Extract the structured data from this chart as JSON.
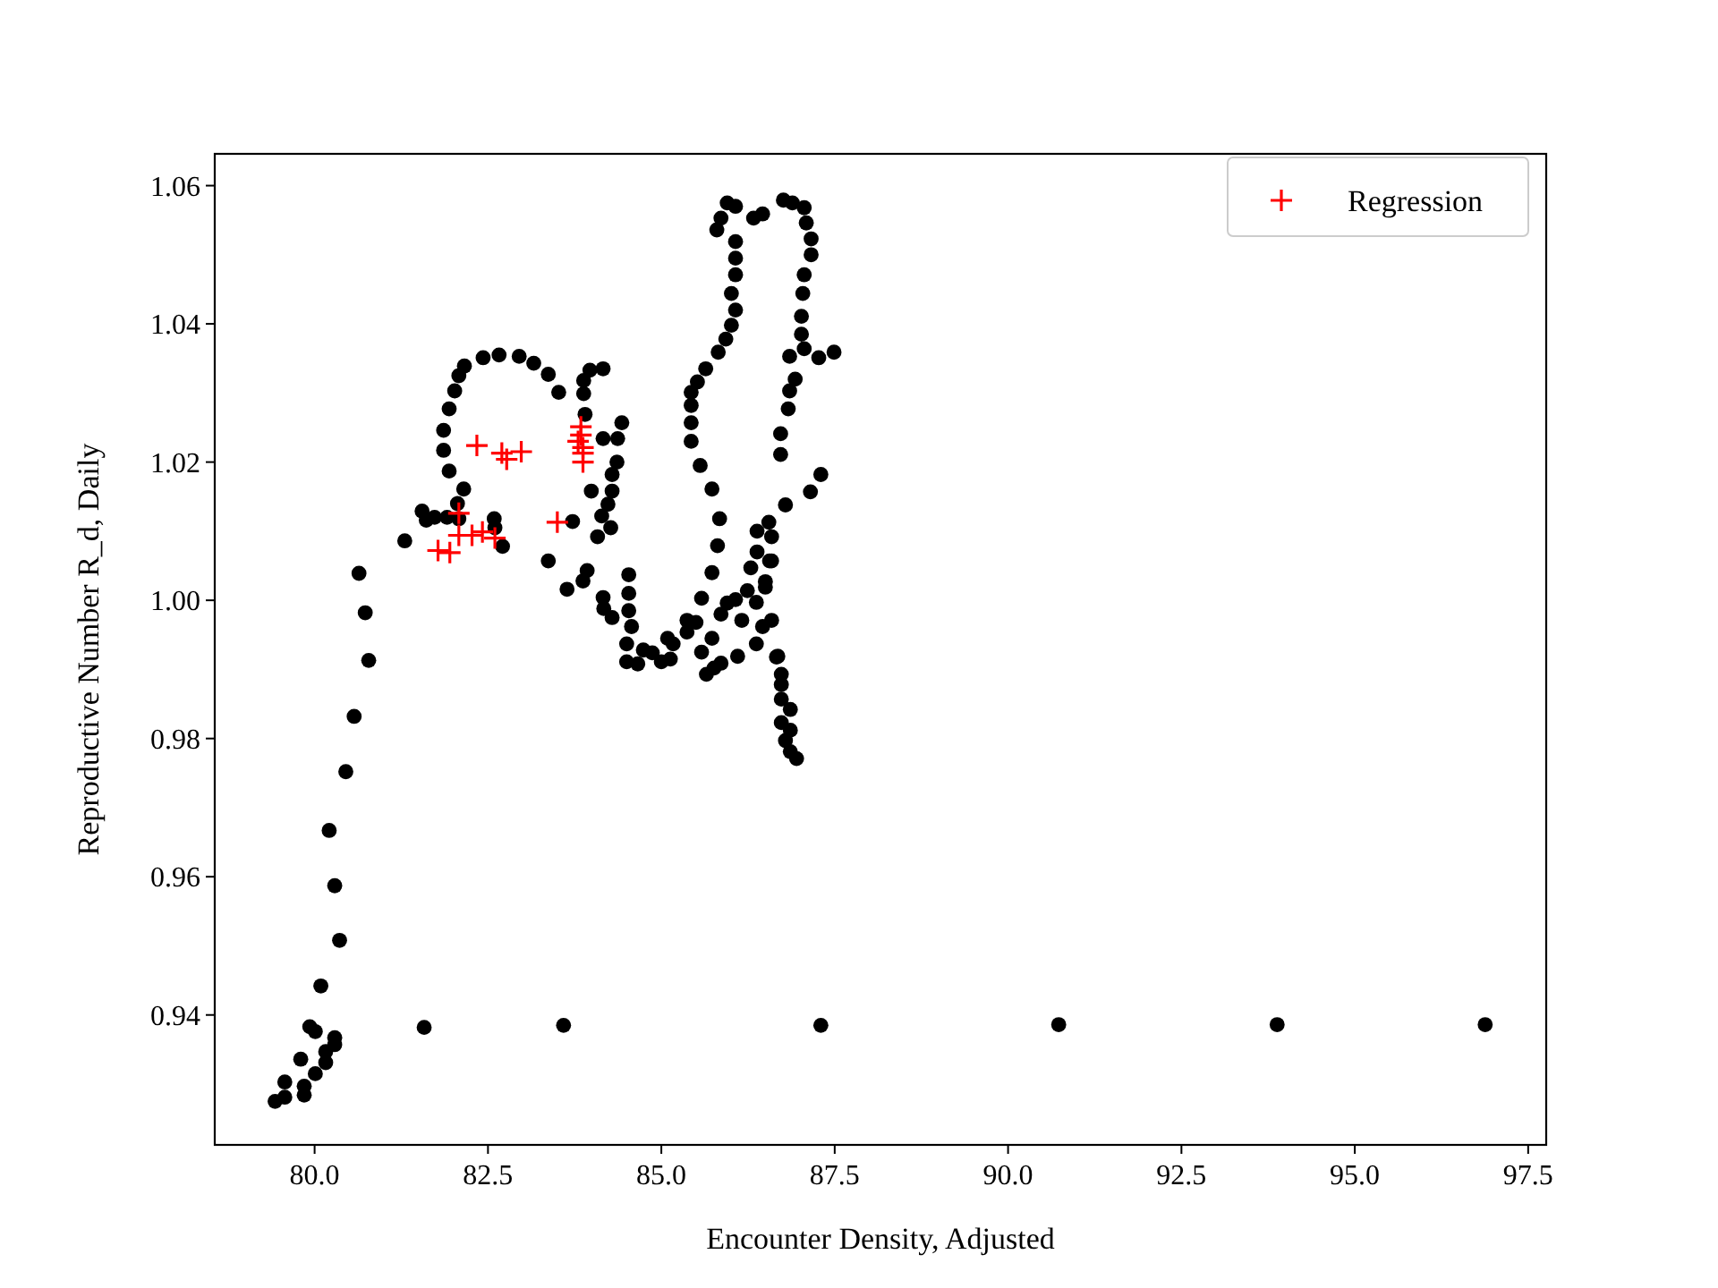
{
  "chart_data": {
    "type": "scatter",
    "xlabel": "Encounter Density, Adjusted",
    "ylabel": "Reproductive Number R_d, Daily",
    "xlim": [
      78.56,
      97.76
    ],
    "ylim": [
      0.9212,
      1.0646
    ],
    "xticks": [
      {
        "value": 80,
        "label": "80.0"
      },
      {
        "value": 82.5,
        "label": "82.5"
      },
      {
        "value": 85,
        "label": "85.0"
      },
      {
        "value": 87.5,
        "label": "87.5"
      },
      {
        "value": 90,
        "label": "90.0"
      },
      {
        "value": 92.5,
        "label": "92.5"
      },
      {
        "value": 95,
        "label": "95.0"
      },
      {
        "value": 97.5,
        "label": "97.5"
      }
    ],
    "yticks": [
      {
        "value": 0.94,
        "label": "0.94"
      },
      {
        "value": 0.96,
        "label": "0.96"
      },
      {
        "value": 0.98,
        "label": "0.98"
      },
      {
        "value": 1.0,
        "label": "1.00"
      },
      {
        "value": 1.02,
        "label": "1.02"
      },
      {
        "value": 1.04,
        "label": "1.04"
      },
      {
        "value": 1.06,
        "label": "1.06"
      }
    ],
    "grid": false,
    "legend": "top right",
    "series": [
      {
        "color": "#000000",
        "marker": "circle",
        "x": [
          79.43,
          79.57,
          79.57,
          79.85,
          79.85,
          80.01,
          79.8,
          80.16,
          80.16,
          80.29,
          80.29,
          79.93,
          80.01,
          80.09,
          80.36,
          80.29,
          80.21,
          80.45,
          80.57,
          80.78,
          80.73,
          80.64,
          81.58,
          83.59,
          87.3,
          90.73,
          93.88,
          96.88,
          81.3,
          81.55,
          81.61,
          81.73,
          81.91,
          82.08,
          82.06,
          82.15,
          81.94,
          81.86,
          81.86,
          81.94,
          82.02,
          82.08,
          82.16,
          82.43,
          82.66,
          82.95,
          83.16,
          83.37,
          83.52,
          82.59,
          82.6,
          82.71,
          83.37,
          83.72,
          84.08,
          84.14,
          84.27,
          84.23,
          84.29,
          84.29,
          84.36,
          84.16,
          84.37,
          84.43,
          83.99,
          83.9,
          83.88,
          83.88,
          83.97,
          84.16,
          83.64,
          83.87,
          83.93,
          84.16,
          84.17,
          84.29,
          84.53,
          84.53,
          84.53,
          84.57,
          84.5,
          84.5,
          84.66,
          84.74,
          84.87,
          85.0,
          85.13,
          85.09,
          85.17,
          85.37,
          85.37,
          85.5,
          85.58,
          85.58,
          85.65,
          85.76,
          85.86,
          85.73,
          85.81,
          85.73,
          85.86,
          85.95,
          86.07,
          86.1,
          86.16,
          86.29,
          86.24,
          86.37,
          86.37,
          86.46,
          86.5,
          86.56,
          86.59,
          86.66,
          86.73,
          86.73,
          86.73,
          86.86,
          86.73,
          86.86,
          86.79,
          86.86,
          86.95,
          85.8,
          85.86,
          85.95,
          86.07,
          86.33,
          86.46,
          86.76,
          86.89,
          87.06,
          87.09,
          87.16,
          87.16,
          87.06,
          87.04,
          87.02,
          87.02,
          87.06,
          87.27,
          87.49,
          86.85,
          86.93,
          86.85,
          86.83,
          86.72,
          86.72,
          87.3,
          87.15,
          86.79,
          86.55,
          86.38,
          86.59,
          86.38,
          86.59,
          86.5,
          86.07,
          86.07,
          86.07,
          86.01,
          86.07,
          86.01,
          85.93,
          85.82,
          85.64,
          85.52,
          85.43,
          85.43,
          85.43,
          85.43,
          85.56,
          85.73,
          85.84,
          86.68
        ],
        "values": [
          0.9275,
          0.9281,
          0.9303,
          0.9284,
          0.9297,
          0.9315,
          0.9336,
          0.9331,
          0.9347,
          0.9357,
          0.9367,
          0.9383,
          0.9376,
          0.9442,
          0.9508,
          0.9587,
          0.9667,
          0.9752,
          0.9832,
          0.9913,
          0.9982,
          1.0039,
          0.9382,
          0.9385,
          0.9385,
          0.9386,
          0.9386,
          0.9386,
          1.0086,
          1.0129,
          1.0116,
          1.012,
          1.012,
          1.0118,
          1.014,
          1.0161,
          1.0187,
          1.0217,
          1.0246,
          1.0277,
          1.0303,
          1.0325,
          1.0339,
          1.0351,
          1.0355,
          1.0353,
          1.0343,
          1.0327,
          1.0301,
          1.0118,
          1.0105,
          1.0078,
          1.0057,
          1.0114,
          1.0092,
          1.0122,
          1.0105,
          1.0139,
          1.0158,
          1.0182,
          1.02,
          1.0234,
          1.0234,
          1.0257,
          1.0158,
          1.0269,
          1.0299,
          1.0318,
          1.0333,
          1.0335,
          1.0016,
          1.0028,
          1.0043,
          1.0004,
          0.9988,
          0.9975,
          1.0037,
          1.001,
          0.9985,
          0.9962,
          0.9937,
          0.9911,
          0.9908,
          0.9928,
          0.9924,
          0.9911,
          0.9915,
          0.9945,
          0.9937,
          0.9971,
          0.9954,
          0.9968,
          1.0003,
          0.9925,
          0.9893,
          0.9902,
          0.9909,
          1.004,
          1.0079,
          0.9945,
          0.998,
          0.9996,
          1.0001,
          0.9919,
          0.9971,
          1.0047,
          1.0014,
          0.9997,
          0.9937,
          0.9962,
          1.0027,
          1.0057,
          0.9971,
          0.9918,
          0.9893,
          0.9878,
          0.9857,
          0.9842,
          0.9823,
          0.9812,
          0.9797,
          0.9781,
          0.9771,
          1.0536,
          1.0553,
          1.0575,
          1.057,
          1.0553,
          1.0559,
          1.0579,
          1.0575,
          1.0568,
          1.0546,
          1.0523,
          1.05,
          1.0471,
          1.0444,
          1.0411,
          1.0385,
          1.0364,
          1.0351,
          1.0359,
          1.0353,
          1.032,
          1.0303,
          1.0277,
          1.0241,
          1.0211,
          1.0182,
          1.0157,
          1.0138,
          1.0113,
          1.01,
          1.0092,
          1.007,
          1.0057,
          1.0019,
          1.0519,
          1.0495,
          1.0471,
          1.0444,
          1.042,
          1.0398,
          1.0378,
          1.0359,
          1.0335,
          1.0316,
          1.0301,
          1.0282,
          1.0257,
          1.023,
          1.0195,
          1.0161,
          1.0118,
          0.9919
        ]
      },
      {
        "name": "Regression",
        "color": "#ff0000",
        "marker": "cross",
        "x": [
          82.34,
          82.7,
          82.77,
          82.98,
          83.84,
          83.84,
          83.8,
          83.87,
          83.87,
          83.87,
          83.5,
          81.78,
          81.95,
          82.08,
          82.27,
          82.42,
          82.6,
          82.08
        ],
        "values": [
          1.0224,
          1.0213,
          1.0204,
          1.0215,
          1.0251,
          1.0239,
          1.023,
          1.0221,
          1.0213,
          1.02,
          1.0113,
          1.0072,
          1.0069,
          1.0094,
          1.0094,
          1.0099,
          1.009,
          1.0126
        ]
      }
    ]
  }
}
